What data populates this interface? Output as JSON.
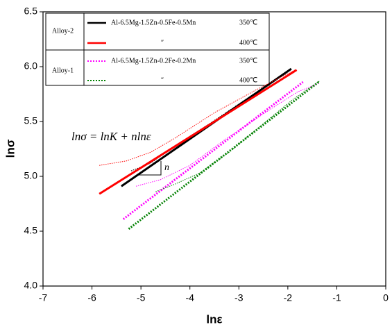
{
  "chart_data": {
    "type": "line",
    "x_label": "lnε",
    "y_label": "lnσ",
    "annotation": "lnσ = lnK + nlnε",
    "slope_label": "n",
    "xlim": [
      -7,
      0
    ],
    "xticks": [
      -7,
      -6,
      -5,
      -4,
      -3,
      -2,
      -1,
      0
    ],
    "ylim": [
      4,
      6.5
    ],
    "yticks": [
      {
        "value": 4,
        "label": "4.0"
      },
      4.5,
      {
        "value": 5,
        "label": "5.0"
      },
      5.5,
      {
        "value": 6,
        "label": "6.0"
      },
      6.5
    ],
    "groups": [
      {
        "label": "Alloy-2",
        "series": [
          {
            "name": "Al-6.5Mg-1.5Zn-0.5Fe-0.5Mn",
            "temp": "350℃",
            "color": "#000000",
            "dash": "solid",
            "x": [
              -5.4,
              -1.93
            ],
            "values": [
              4.91,
              5.98
            ],
            "raw_x": [
              -5.2,
              -4.8,
              -4.3,
              -3.6,
              -2.8,
              -2.0
            ],
            "raw_values": [
              5.05,
              5.12,
              5.28,
              5.48,
              5.72,
              5.96
            ]
          },
          {
            "name": "″",
            "temp": "400℃",
            "color": "#ff0000",
            "dash": "solid",
            "x": [
              -5.85,
              -1.82
            ],
            "values": [
              4.84,
              5.97
            ],
            "raw_x": [
              -5.85,
              -5.3,
              -4.8,
              -4.3,
              -3.5,
              -2.6,
              -1.85
            ],
            "raw_values": [
              5.1,
              5.14,
              5.22,
              5.35,
              5.58,
              5.8,
              5.97
            ]
          }
        ]
      },
      {
        "label": "Alloy-1",
        "series": [
          {
            "name": "Al-6.5Mg-1.5Zn-0.2Fe-0.2Mn",
            "temp": "350℃",
            "color": "#ff00ff",
            "dash": "dotted",
            "x": [
              -5.36,
              -1.69
            ],
            "values": [
              4.61,
              5.86
            ],
            "raw_x": [
              -5.1,
              -4.6,
              -4.0,
              -3.3,
              -2.5,
              -1.8,
              -1.35
            ],
            "raw_values": [
              4.91,
              4.97,
              5.1,
              5.33,
              5.57,
              5.77,
              5.85
            ]
          },
          {
            "name": "″",
            "temp": "400℃",
            "color": "#008000",
            "dash": "dotted",
            "x": [
              -5.25,
              -1.37
            ],
            "values": [
              4.52,
              5.86
            ],
            "raw_x": [
              -4.7,
              -4.3,
              -3.8,
              -3.2,
              -2.5,
              -1.9,
              -1.35
            ],
            "raw_values": [
              4.86,
              4.93,
              5.03,
              5.22,
              5.48,
              5.7,
              5.87
            ]
          }
        ]
      }
    ]
  }
}
